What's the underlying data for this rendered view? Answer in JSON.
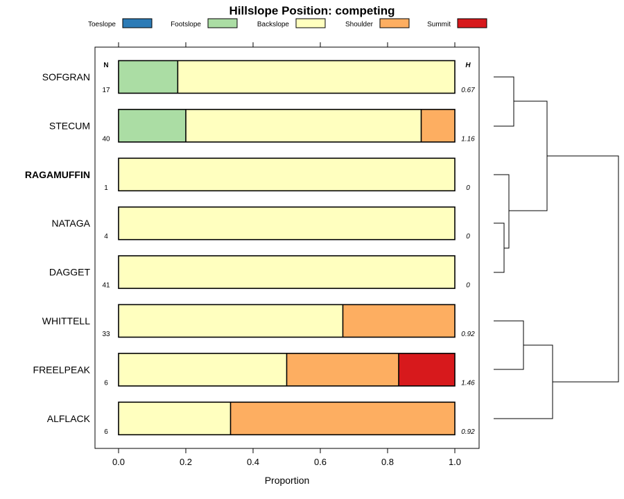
{
  "chart_data": {
    "type": "bar",
    "orientation": "horizontal",
    "stacked": true,
    "title": "Hillslope Position: competing",
    "xlabel": "Proportion",
    "xlim": [
      0,
      1
    ],
    "x_ticks": [
      "0.0",
      "0.2",
      "0.4",
      "0.6",
      "0.8",
      "1.0"
    ],
    "n_header": "N",
    "h_header": "H",
    "legend": [
      {
        "name": "Toeslope",
        "color": "#2c7bb6"
      },
      {
        "name": "Footslope",
        "color": "#abdda4"
      },
      {
        "name": "Backslope",
        "color": "#ffffbf"
      },
      {
        "name": "Shoulder",
        "color": "#fdae61"
      },
      {
        "name": "Summit",
        "color": "#d7191c"
      }
    ],
    "series_names": [
      "Toeslope",
      "Footslope",
      "Backslope",
      "Shoulder",
      "Summit"
    ],
    "categories": [
      {
        "name": "SOFGRAN",
        "n": "17",
        "h": "0.67",
        "bold": false,
        "values": [
          0,
          0.176,
          0.824,
          0,
          0
        ]
      },
      {
        "name": "STECUM",
        "n": "40",
        "h": "1.16",
        "bold": false,
        "values": [
          0,
          0.2,
          0.7,
          0.1,
          0
        ]
      },
      {
        "name": "RAGAMUFFIN",
        "n": "1",
        "h": "0",
        "bold": true,
        "values": [
          0,
          0,
          1.0,
          0,
          0
        ]
      },
      {
        "name": "NATAGA",
        "n": "4",
        "h": "0",
        "bold": false,
        "values": [
          0,
          0,
          1.0,
          0,
          0
        ]
      },
      {
        "name": "DAGGET",
        "n": "41",
        "h": "0",
        "bold": false,
        "values": [
          0,
          0,
          1.0,
          0,
          0
        ]
      },
      {
        "name": "WHITTELL",
        "n": "33",
        "h": "0.92",
        "bold": false,
        "values": [
          0,
          0,
          0.667,
          0.333,
          0
        ]
      },
      {
        "name": "FREELPEAK",
        "n": "6",
        "h": "1.46",
        "bold": false,
        "values": [
          0,
          0,
          0.5,
          0.333,
          0.167
        ]
      },
      {
        "name": "ALFLACK",
        "n": "6",
        "h": "0.92",
        "bold": false,
        "values": [
          0,
          0,
          0.333,
          0.667,
          0
        ]
      }
    ],
    "dendrogram": {
      "type": "hierarchical-clustering",
      "merges": [
        {
          "a": "SOFGRAN",
          "b": "STECUM",
          "height": 0.35
        },
        {
          "a": "NATAGA",
          "b": "DAGGET",
          "height": 0.1
        },
        {
          "a": "RAGAMUFFIN",
          "b": "NATAGA+DAGGET",
          "height": 0.25
        },
        {
          "a": "SOFGRAN+STECUM",
          "b": "RAGAMUFFIN+NATAGA+DAGGET",
          "height": 0.92
        },
        {
          "a": "WHITTELL",
          "b": "FREELPEAK",
          "height": 0.53
        },
        {
          "a": "WHITTELL+FREELPEAK",
          "b": "ALFLACK",
          "height": 1.0
        },
        {
          "a": "upper-cluster",
          "b": "lower-cluster",
          "height": 2.2
        }
      ]
    }
  }
}
